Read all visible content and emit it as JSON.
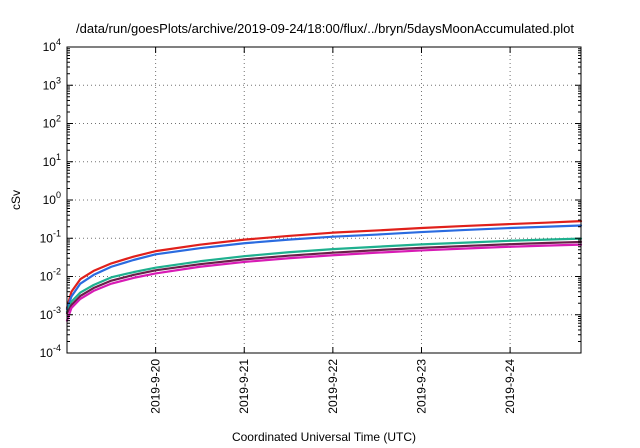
{
  "chart_data": {
    "type": "line",
    "title": "/data/run/goesPlots/archive/2019-09-24/18:00/flux/../bryn/5daysMoonAccumulated.plot",
    "xlabel": "Coordinated Universal Time (UTC)",
    "ylabel": "cSv",
    "x_tick_labels": [
      "2019-9-20",
      "2019-9-21",
      "2019-9-22",
      "2019-9-23",
      "2019-9-24"
    ],
    "x_ticks_days": [
      1,
      2,
      3,
      4,
      5
    ],
    "xlim_days": [
      0,
      5.8
    ],
    "yscale": "log",
    "ylim": [
      0.0001,
      10000
    ],
    "y_ticks": [
      {
        "value": 0.0001,
        "base": "10",
        "exp": "-4"
      },
      {
        "value": 0.001,
        "base": "10",
        "exp": "-3"
      },
      {
        "value": 0.01,
        "base": "10",
        "exp": "-2"
      },
      {
        "value": 0.1,
        "base": "10",
        "exp": "-1"
      },
      {
        "value": 1,
        "base": "10",
        "exp": "0"
      },
      {
        "value": 10,
        "base": "10",
        "exp": "1"
      },
      {
        "value": 100,
        "base": "10",
        "exp": "2"
      },
      {
        "value": 1000,
        "base": "10",
        "exp": "3"
      },
      {
        "value": 10000,
        "base": "10",
        "exp": "4"
      }
    ],
    "grid": true,
    "series": [
      {
        "color": "#e0201b",
        "x": [
          0,
          0.05,
          0.15,
          0.3,
          0.5,
          0.75,
          1.0,
          1.5,
          2.0,
          2.5,
          3.0,
          3.5,
          4.0,
          4.5,
          5.0,
          5.4,
          5.8
        ],
        "y": [
          0.0015,
          0.004,
          0.0085,
          0.014,
          0.022,
          0.033,
          0.046,
          0.068,
          0.092,
          0.115,
          0.14,
          0.16,
          0.185,
          0.21,
          0.235,
          0.255,
          0.28
        ]
      },
      {
        "color": "#2a6be0",
        "x": [
          0,
          0.05,
          0.15,
          0.3,
          0.5,
          0.75,
          1.0,
          1.5,
          2.0,
          2.5,
          3.0,
          3.5,
          4.0,
          4.5,
          5.0,
          5.4,
          5.8
        ],
        "y": [
          0.0014,
          0.003,
          0.0065,
          0.011,
          0.018,
          0.027,
          0.038,
          0.055,
          0.074,
          0.092,
          0.11,
          0.125,
          0.145,
          0.165,
          0.185,
          0.2,
          0.215
        ]
      },
      {
        "color": "#1fb08f",
        "x": [
          0,
          0.05,
          0.15,
          0.3,
          0.5,
          0.75,
          1.0,
          1.5,
          2.0,
          2.5,
          3.0,
          3.5,
          4.0,
          4.5,
          5.0,
          5.4,
          5.8
        ],
        "y": [
          0.0012,
          0.0022,
          0.0038,
          0.006,
          0.0095,
          0.013,
          0.017,
          0.025,
          0.034,
          0.043,
          0.052,
          0.06,
          0.069,
          0.077,
          0.086,
          0.092,
          0.098
        ]
      },
      {
        "color": "#6b1f4a",
        "x": [
          0,
          0.05,
          0.15,
          0.3,
          0.5,
          0.75,
          1.0,
          1.5,
          2.0,
          2.5,
          3.0,
          3.5,
          4.0,
          4.5,
          5.0,
          5.4,
          5.8
        ],
        "y": [
          0.0011,
          0.0018,
          0.0031,
          0.005,
          0.0078,
          0.011,
          0.0145,
          0.021,
          0.028,
          0.035,
          0.042,
          0.049,
          0.056,
          0.063,
          0.07,
          0.075,
          0.08
        ]
      },
      {
        "color": "#d81bb5",
        "x": [
          0,
          0.05,
          0.15,
          0.3,
          0.5,
          0.75,
          1.0,
          1.5,
          2.0,
          2.5,
          3.0,
          3.5,
          4.0,
          4.5,
          5.0,
          5.4,
          5.8
        ],
        "y": [
          0.0007,
          0.0015,
          0.0026,
          0.0042,
          0.0065,
          0.0092,
          0.012,
          0.018,
          0.024,
          0.03,
          0.036,
          0.042,
          0.048,
          0.054,
          0.06,
          0.064,
          0.068
        ]
      }
    ]
  }
}
